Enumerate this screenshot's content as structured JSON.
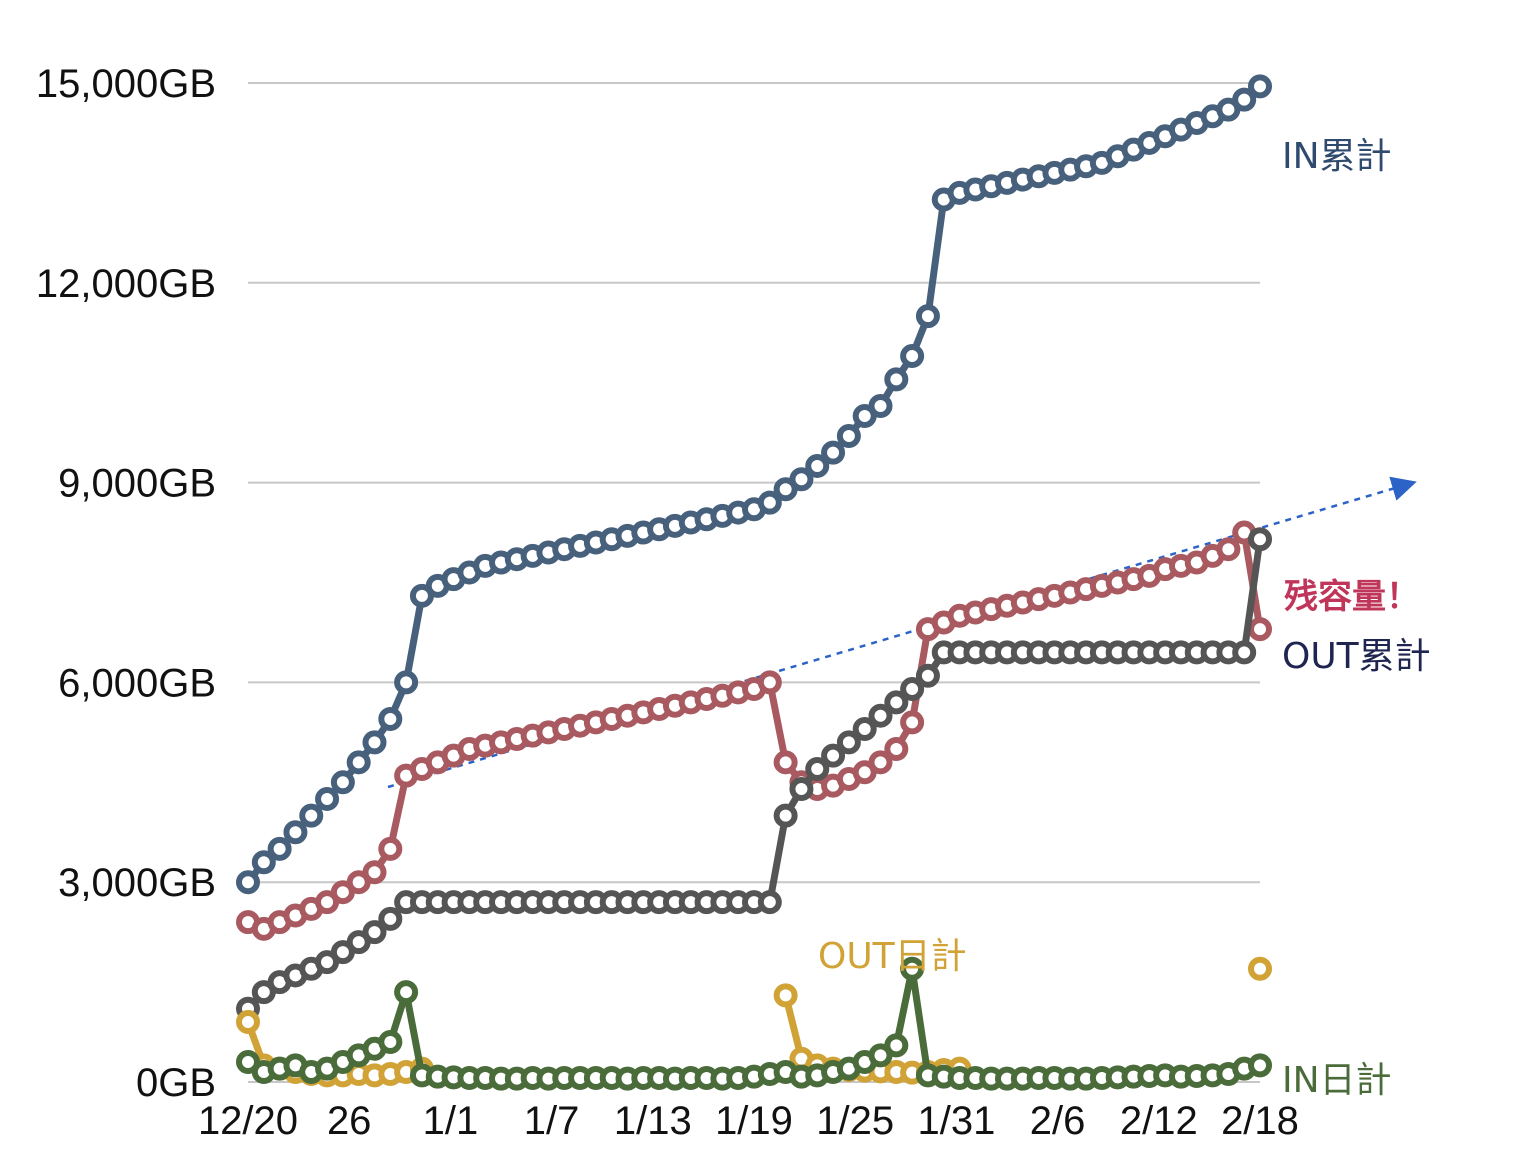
{
  "chart_data": {
    "type": "line",
    "y_ticks": [
      "0GB",
      "3,000GB",
      "6,000GB",
      "9,000GB",
      "12,000GB",
      "15,000GB"
    ],
    "x_ticks": [
      {
        "label": "12/20",
        "index": 0
      },
      {
        "label": "26",
        "index": 6
      },
      {
        "label": "1/1",
        "index": 12
      },
      {
        "label": "1/7",
        "index": 18
      },
      {
        "label": "1/13",
        "index": 24
      },
      {
        "label": "1/19",
        "index": 30
      },
      {
        "label": "1/25",
        "index": 36
      },
      {
        "label": "1/31",
        "index": 42
      },
      {
        "label": "2/6",
        "index": 48
      },
      {
        "label": "2/12",
        "index": 54
      },
      {
        "label": "2/18",
        "index": 60
      }
    ],
    "ylim": [
      0,
      15000
    ],
    "n_points": 61,
    "grid": true,
    "series": [
      {
        "name": "IN累計",
        "color": "#47607c",
        "values": [
          3000,
          3300,
          3500,
          3750,
          4000,
          4250,
          4500,
          4800,
          5100,
          5450,
          6000,
          7300,
          7450,
          7550,
          7650,
          7750,
          7800,
          7850,
          7900,
          7950,
          8000,
          8050,
          8100,
          8150,
          8200,
          8250,
          8300,
          8350,
          8400,
          8450,
          8500,
          8550,
          8600,
          8700,
          8900,
          9050,
          9250,
          9450,
          9700,
          10000,
          10150,
          10550,
          10900,
          11500,
          13250,
          13350,
          13400,
          13450,
          13500,
          13550,
          13600,
          13650,
          13700,
          13750,
          13800,
          13900,
          14000,
          14100,
          14200,
          14300,
          14400,
          14500,
          14600,
          14750,
          14950
        ]
      },
      {
        "name": "残容量！",
        "color": "#a85a60",
        "values": [
          2400,
          2300,
          2400,
          2500,
          2600,
          2700,
          2850,
          3000,
          3150,
          3500,
          4600,
          4700,
          4800,
          4900,
          5000,
          5050,
          5100,
          5150,
          5200,
          5250,
          5300,
          5350,
          5400,
          5450,
          5500,
          5550,
          5600,
          5650,
          5700,
          5750,
          5800,
          5850,
          5900,
          6000,
          4800,
          4500,
          4400,
          4450,
          4550,
          4650,
          4800,
          5000,
          5400,
          6800,
          6900,
          7000,
          7050,
          7100,
          7150,
          7200,
          7250,
          7300,
          7350,
          7400,
          7450,
          7500,
          7550,
          7600,
          7700,
          7750,
          7800,
          7900,
          8000,
          8250,
          6800
        ]
      },
      {
        "name": "OUT累計",
        "color": "#555555",
        "values": [
          1100,
          1350,
          1500,
          1600,
          1700,
          1800,
          1950,
          2100,
          2250,
          2450,
          2700,
          2700,
          2700,
          2700,
          2700,
          2700,
          2700,
          2700,
          2700,
          2700,
          2700,
          2700,
          2700,
          2700,
          2700,
          2700,
          2700,
          2700,
          2700,
          2700,
          2700,
          2700,
          2700,
          2700,
          4000,
          4400,
          4700,
          4900,
          5100,
          5300,
          5500,
          5700,
          5900,
          6100,
          6450,
          6450,
          6450,
          6450,
          6450,
          6450,
          6450,
          6450,
          6450,
          6450,
          6450,
          6450,
          6450,
          6450,
          6450,
          6450,
          6450,
          6450,
          6450,
          6450,
          8150
        ]
      },
      {
        "name": "OUT日計",
        "color": "#d1a336",
        "values": [
          900,
          250,
          200,
          150,
          120,
          100,
          100,
          120,
          100,
          120,
          150,
          200,
          null,
          null,
          null,
          null,
          null,
          null,
          null,
          null,
          null,
          null,
          null,
          null,
          null,
          null,
          null,
          null,
          null,
          null,
          null,
          null,
          null,
          null,
          1300,
          350,
          250,
          200,
          180,
          170,
          160,
          150,
          140,
          150,
          180,
          200,
          null,
          null,
          null,
          null,
          null,
          null,
          null,
          null,
          null,
          null,
          null,
          null,
          null,
          null,
          null,
          null,
          null,
          null,
          1700
        ]
      },
      {
        "name": "IN日計",
        "color": "#4a6b3a",
        "values": [
          300,
          150,
          200,
          250,
          150,
          200,
          300,
          400,
          500,
          600,
          1350,
          100,
          80,
          70,
          60,
          60,
          50,
          50,
          60,
          50,
          60,
          60,
          60,
          60,
          50,
          60,
          60,
          50,
          60,
          60,
          50,
          60,
          80,
          120,
          150,
          80,
          100,
          150,
          200,
          300,
          400,
          550,
          1700,
          100,
          80,
          60,
          60,
          50,
          50,
          50,
          60,
          60,
          50,
          50,
          60,
          70,
          80,
          90,
          100,
          80,
          90,
          100,
          120,
          200,
          250
        ]
      }
    ],
    "series_labels": [
      {
        "text": "IN累計",
        "color": "#2e4a6e",
        "bold": false
      },
      {
        "text": "残容量！",
        "color": "#c0365a",
        "bold": true
      },
      {
        "text": "OUT累計",
        "color": "#1f2550",
        "bold": false
      },
      {
        "text": "OUT日計",
        "color": "#d1a336",
        "bold": false
      },
      {
        "text": "IN日計",
        "color": "#4a6b3a",
        "bold": false
      }
    ],
    "trend_arrow_color": "#2b63c6"
  }
}
